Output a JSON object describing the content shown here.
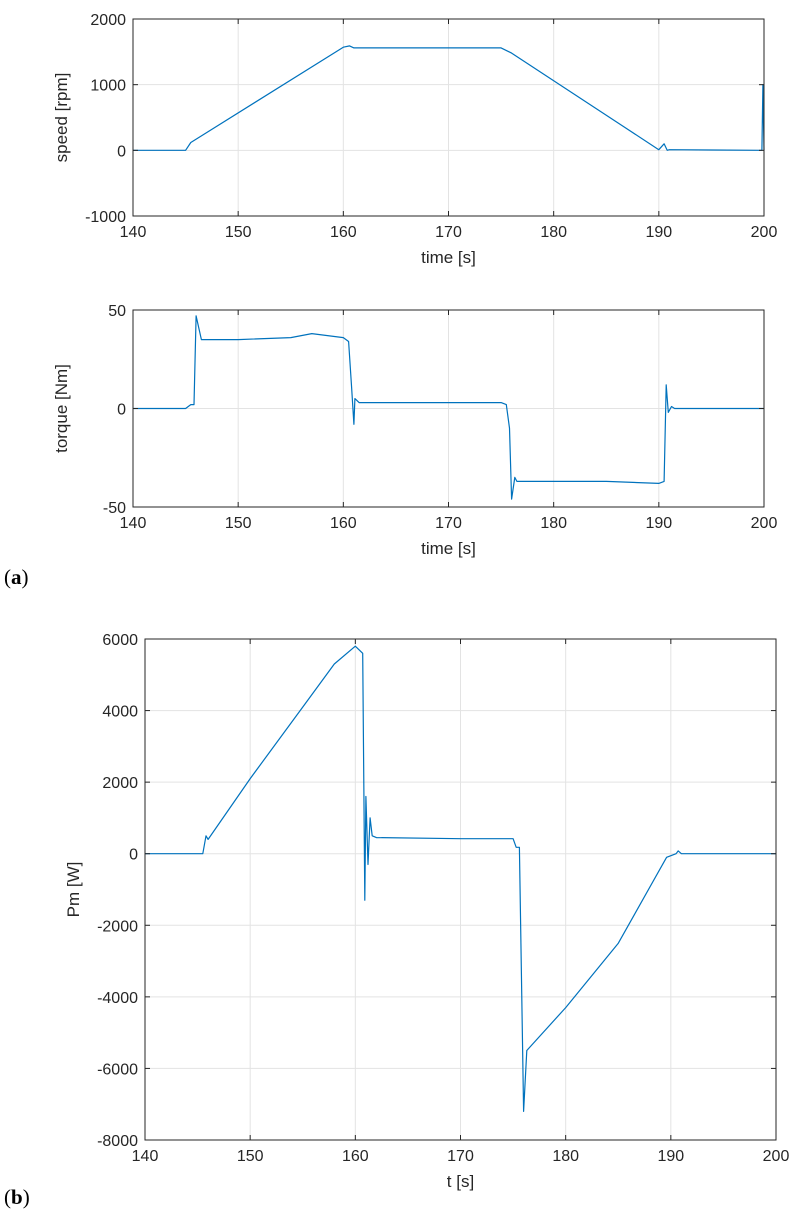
{
  "panel_labels": {
    "a": "a",
    "b": "b"
  },
  "chart_data": [
    {
      "type": "line",
      "xlabel": "time [s]",
      "ylabel": "speed [rpm]",
      "xlim": [
        140,
        200
      ],
      "ylim": [
        -1000,
        2000
      ],
      "xticks": [
        140,
        150,
        160,
        170,
        180,
        190,
        200
      ],
      "yticks": [
        -1000,
        0,
        1000,
        2000
      ],
      "grid": true,
      "line_color": "#0072BD",
      "series": [
        {
          "x": [
            140,
            145,
            145.5,
            160,
            160.6,
            161,
            162,
            175,
            176,
            190,
            190.5,
            190.8,
            191,
            195,
            199.8,
            199.9,
            200
          ],
          "values": [
            0,
            0,
            120,
            1570,
            1590,
            1560,
            1560,
            1560,
            1480,
            10,
            100,
            0,
            10,
            5,
            0,
            1000,
            0
          ]
        }
      ]
    },
    {
      "type": "line",
      "xlabel": "time [s]",
      "ylabel": "torque [Nm]",
      "xlim": [
        140,
        200
      ],
      "ylim": [
        -50,
        50
      ],
      "xticks": [
        140,
        150,
        160,
        170,
        180,
        190,
        200
      ],
      "yticks": [
        -50,
        0,
        50
      ],
      "grid": true,
      "line_color": "#0072BD",
      "series": [
        {
          "x": [
            140,
            145,
            145.5,
            145.8,
            146,
            146.5,
            150,
            155,
            157,
            160,
            160.5,
            160.8,
            161,
            161.1,
            161.5,
            165,
            175,
            175.5,
            175.8,
            176,
            176.3,
            176.5,
            180,
            185,
            190,
            190.5,
            190.7,
            190.9,
            191.2,
            191.5,
            195,
            200
          ],
          "values": [
            0,
            0,
            2,
            2,
            47,
            35,
            35,
            36,
            38,
            36,
            34,
            10,
            -8,
            5,
            3,
            3,
            3,
            2,
            -10,
            -46,
            -35,
            -37,
            -37,
            -37,
            -38,
            -37,
            12,
            -2,
            1,
            0,
            0,
            0
          ]
        }
      ]
    },
    {
      "type": "line",
      "xlabel": "t [s]",
      "ylabel": "Pm [W]",
      "xlim": [
        140,
        200
      ],
      "ylim": [
        -8000,
        6000
      ],
      "xticks": [
        140,
        150,
        160,
        170,
        180,
        190,
        200
      ],
      "yticks": [
        -8000,
        -6000,
        -4000,
        -2000,
        0,
        2000,
        4000,
        6000
      ],
      "grid": true,
      "line_color": "#0072BD",
      "series": [
        {
          "x": [
            140,
            145.5,
            145.8,
            146,
            150,
            155,
            158,
            160,
            160.7,
            160.9,
            161,
            161.2,
            161.4,
            161.6,
            162,
            170,
            175,
            175.3,
            175.6,
            176,
            176.3,
            180,
            185,
            189.6,
            190.5,
            190.7,
            191,
            200
          ],
          "values": [
            0,
            0,
            500,
            400,
            2100,
            4100,
            5300,
            5800,
            5600,
            -1300,
            1600,
            -300,
            1000,
            500,
            450,
            420,
            420,
            180,
            180,
            -7200,
            -5500,
            -4300,
            -2500,
            -100,
            0,
            80,
            0,
            0
          ]
        }
      ]
    }
  ]
}
